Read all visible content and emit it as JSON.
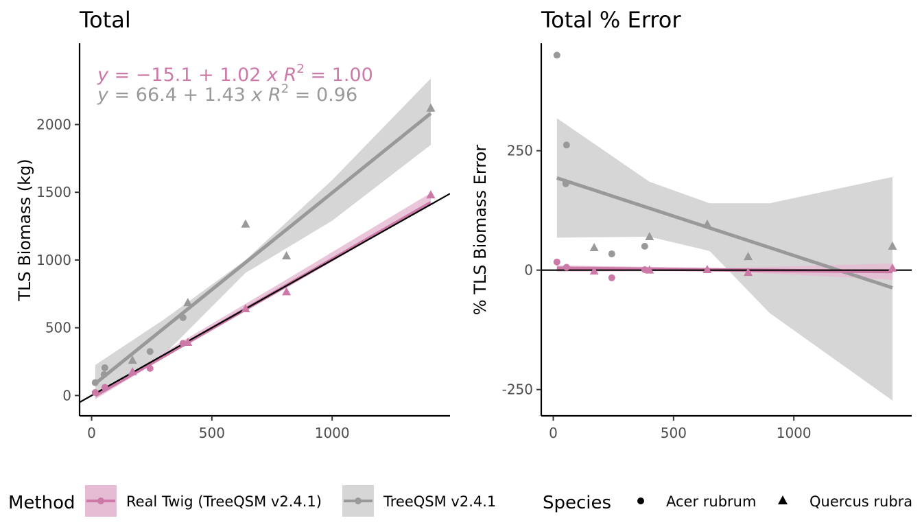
{
  "colors": {
    "real_twig": "#CC79A7",
    "treeqsm": "#999999",
    "band_real": "#E5BCD4",
    "band_treeqsm": "#D6D6D6",
    "axis": "#000000",
    "tick_text": "#4d4d4d"
  },
  "legend": {
    "method_title": "Method",
    "method_items": [
      "Real Twig (TreeQSM v2.4.1)",
      "TreeQSM v2.4.1"
    ],
    "species_title": "Species",
    "species_items": [
      "Acer rubrum",
      "Quercus rubra"
    ]
  },
  "chart_data": [
    {
      "type": "scatter",
      "title": "Total",
      "xlabel": "",
      "ylabel": "TLS Biomass (kg)",
      "xlim": [
        -50,
        1490
      ],
      "ylim": [
        -150,
        2600
      ],
      "xticks": [
        0,
        500,
        1000
      ],
      "yticks": [
        0,
        500,
        1000,
        1500,
        2000
      ],
      "grid": false,
      "one_to_one_line": true,
      "annotations": [
        {
          "series": "Real Twig (TreeQSM v2.4.1)",
          "y_label": "y",
          "intercept_text": "−15.1",
          "slope_text": "1.02",
          "x_label": "x",
          "r2_label": "R",
          "r2_text": "1.00"
        },
        {
          "series": "TreeQSM v2.4.1",
          "y_label": "y",
          "intercept_text": "66.4",
          "slope_text": "1.43",
          "x_label": "x",
          "r2_label": "R",
          "r2_text": "0.96"
        }
      ],
      "series": [
        {
          "name": "Real Twig (TreeQSM v2.4.1)",
          "fit": {
            "intercept": -15.1,
            "slope": 1.02,
            "x_range": [
              15,
              1410
            ]
          },
          "band": [
            [
              15,
              5,
              -28
            ],
            [
              400,
              425,
              385
            ],
            [
              800,
              845,
              790
            ],
            [
              1410,
              1495,
              1425
            ]
          ],
          "points": [
            {
              "x": 15,
              "y": 22,
              "species": "Acer rubrum"
            },
            {
              "x": 55,
              "y": 60,
              "species": "Acer rubrum"
            },
            {
              "x": 170,
              "y": 175,
              "species": "Quercus rubra"
            },
            {
              "x": 243,
              "y": 200,
              "species": "Acer rubrum"
            },
            {
              "x": 380,
              "y": 385,
              "species": "Acer rubrum"
            },
            {
              "x": 400,
              "y": 392,
              "species": "Quercus rubra"
            },
            {
              "x": 640,
              "y": 640,
              "species": "Quercus rubra"
            },
            {
              "x": 810,
              "y": 765,
              "species": "Quercus rubra"
            },
            {
              "x": 1410,
              "y": 1480,
              "species": "Quercus rubra"
            }
          ]
        },
        {
          "name": "TreeQSM v2.4.1",
          "fit": {
            "intercept": 66.4,
            "slope": 1.43,
            "x_range": [
              15,
              1410
            ]
          },
          "band": [
            [
              15,
              225,
              -20
            ],
            [
              300,
              560,
              300
            ],
            [
              640,
              1000,
              905
            ],
            [
              1000,
              1590,
              1290
            ],
            [
              1410,
              2340,
              1850
            ]
          ],
          "points": [
            {
              "x": 15,
              "y": 95,
              "species": "Acer rubrum"
            },
            {
              "x": 52,
              "y": 155,
              "species": "Acer rubrum"
            },
            {
              "x": 55,
              "y": 205,
              "species": "Acer rubrum"
            },
            {
              "x": 170,
              "y": 260,
              "species": "Quercus rubra"
            },
            {
              "x": 243,
              "y": 325,
              "species": "Acer rubrum"
            },
            {
              "x": 380,
              "y": 575,
              "species": "Acer rubrum"
            },
            {
              "x": 400,
              "y": 685,
              "species": "Quercus rubra"
            },
            {
              "x": 640,
              "y": 1265,
              "species": "Quercus rubra"
            },
            {
              "x": 810,
              "y": 1030,
              "species": "Quercus rubra"
            },
            {
              "x": 1410,
              "y": 2120,
              "species": "Quercus rubra"
            }
          ]
        }
      ]
    },
    {
      "type": "scatter",
      "title": "Total % Error",
      "xlabel": "",
      "ylabel": "% TLS Biomass Error",
      "xlim": [
        -50,
        1490
      ],
      "ylim": [
        -305,
        475
      ],
      "xticks": [
        0,
        500,
        1000
      ],
      "yticks": [
        -250,
        0,
        250
      ],
      "grid": false,
      "zero_line": true,
      "series": [
        {
          "name": "Real Twig (TreeQSM v2.4.1)",
          "fit": {
            "x": [
              15,
              1410
            ],
            "y": [
              4,
              -3
            ]
          },
          "band": [
            [
              15,
              10,
              -3
            ],
            [
              700,
              4,
              -2
            ],
            [
              1410,
              14,
              -20
            ]
          ],
          "points": [
            {
              "x": 15,
              "y": 17,
              "species": "Acer rubrum"
            },
            {
              "x": 55,
              "y": 6,
              "species": "Acer rubrum"
            },
            {
              "x": 170,
              "y": -2,
              "species": "Quercus rubra"
            },
            {
              "x": 243,
              "y": -16,
              "species": "Acer rubrum"
            },
            {
              "x": 380,
              "y": 1,
              "species": "Acer rubrum"
            },
            {
              "x": 400,
              "y": 0,
              "species": "Quercus rubra"
            },
            {
              "x": 640,
              "y": 1,
              "species": "Quercus rubra"
            },
            {
              "x": 810,
              "y": -5,
              "species": "Quercus rubra"
            },
            {
              "x": 1410,
              "y": 4,
              "species": "Quercus rubra"
            }
          ]
        },
        {
          "name": "TreeQSM v2.4.1",
          "fit": {
            "x": [
              15,
              1410
            ],
            "y": [
              193,
              -37
            ]
          },
          "band": [
            [
              15,
              318,
              68
            ],
            [
              400,
              185,
              70
            ],
            [
              650,
              140,
              40
            ],
            [
              900,
              140,
              -90
            ],
            [
              1410,
              195,
              -273
            ]
          ],
          "points": [
            {
              "x": 15,
              "y": 450,
              "species": "Acer rubrum"
            },
            {
              "x": 52,
              "y": 181,
              "species": "Acer rubrum"
            },
            {
              "x": 55,
              "y": 262,
              "species": "Acer rubrum"
            },
            {
              "x": 170,
              "y": 47,
              "species": "Quercus rubra"
            },
            {
              "x": 243,
              "y": 34,
              "species": "Acer rubrum"
            },
            {
              "x": 380,
              "y": 50,
              "species": "Acer rubrum"
            },
            {
              "x": 400,
              "y": 70,
              "species": "Quercus rubra"
            },
            {
              "x": 640,
              "y": 96,
              "species": "Quercus rubra"
            },
            {
              "x": 810,
              "y": 28,
              "species": "Quercus rubra"
            },
            {
              "x": 1410,
              "y": 50,
              "species": "Quercus rubra"
            }
          ]
        }
      ]
    }
  ]
}
